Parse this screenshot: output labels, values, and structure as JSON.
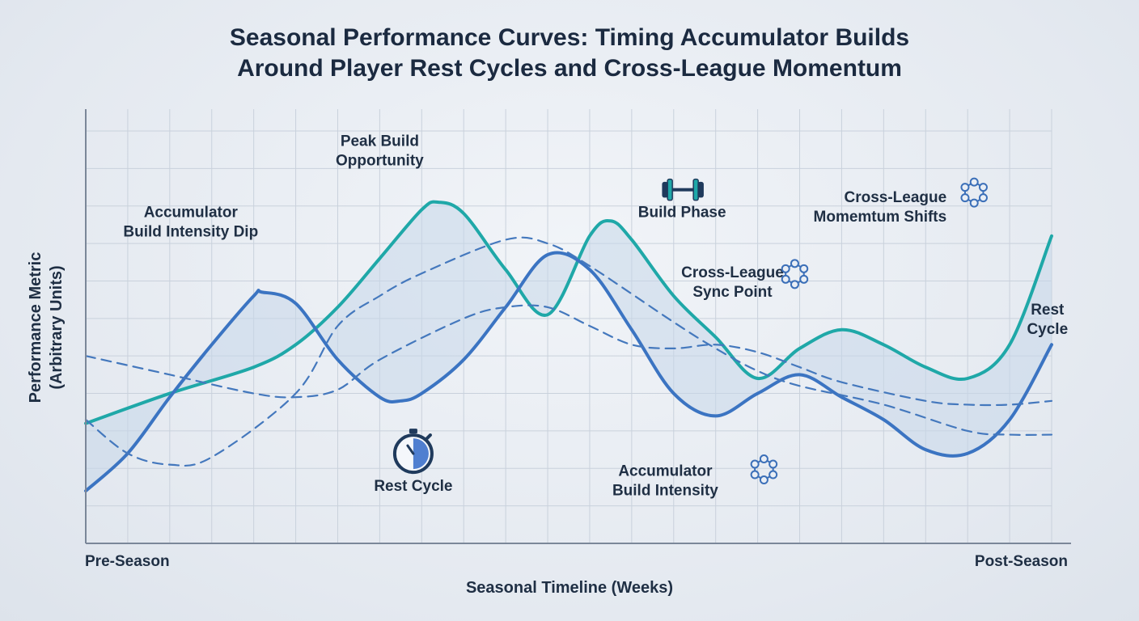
{
  "chart_data": {
    "type": "line",
    "title_line1": "Seasonal Performance Curves:  Timing Accumulator Builds",
    "title_line2": "Around Player Rest Cycles and Cross-League Momentum",
    "xlabel": "Seasonal Timeline (Weeks)",
    "ylabel_line1": "Performance Metric",
    "ylabel_line2": "(Arbitrary Units)",
    "x_tick_start": "Pre-Season",
    "x_tick_end": "Post-Season",
    "xlim": [
      0,
      23
    ],
    "ylim": [
      0,
      11
    ],
    "grid": true,
    "colors": {
      "teal": "#1fa8a8",
      "blue": "#3b74c2",
      "dash": "#4478bd",
      "grid": "#c9d1dc",
      "axis": "#7b8799"
    },
    "series": [
      {
        "style": "solid",
        "color": "#1fa8a8",
        "fill": "#bfe6e0",
        "points": [
          [
            0,
            3.2
          ],
          [
            2,
            4.0
          ],
          [
            4,
            4.7
          ],
          [
            5,
            5.3
          ],
          [
            6,
            6.3
          ],
          [
            7,
            7.6
          ],
          [
            8,
            8.9
          ],
          [
            8.4,
            9.1
          ],
          [
            9,
            8.8
          ],
          [
            10,
            7.3
          ],
          [
            11,
            6.1
          ],
          [
            12,
            8.2
          ],
          [
            12.5,
            8.6
          ],
          [
            13,
            8.1
          ],
          [
            14,
            6.6
          ],
          [
            15,
            5.5
          ],
          [
            16,
            4.4
          ],
          [
            17,
            5.2
          ],
          [
            18,
            5.7
          ],
          [
            19,
            5.3
          ],
          [
            20,
            4.7
          ],
          [
            21,
            4.4
          ],
          [
            22,
            5.3
          ],
          [
            23,
            8.2
          ]
        ]
      },
      {
        "style": "solid",
        "color": "#3b74c2",
        "fill": "#b9c8e6",
        "points": [
          [
            0,
            1.4
          ],
          [
            1,
            2.4
          ],
          [
            2,
            3.9
          ],
          [
            3,
            5.3
          ],
          [
            4,
            6.6
          ],
          [
            4.2,
            6.7
          ],
          [
            5,
            6.4
          ],
          [
            6,
            4.9
          ],
          [
            7,
            3.9
          ],
          [
            7.5,
            3.8
          ],
          [
            8,
            4.0
          ],
          [
            9,
            4.9
          ],
          [
            10,
            6.3
          ],
          [
            11,
            7.7
          ],
          [
            12,
            7.3
          ],
          [
            13,
            5.7
          ],
          [
            14,
            4.0
          ],
          [
            15,
            3.4
          ],
          [
            16,
            4.0
          ],
          [
            17,
            4.5
          ],
          [
            18,
            3.9
          ],
          [
            19,
            3.3
          ],
          [
            20,
            2.5
          ],
          [
            21,
            2.4
          ],
          [
            22,
            3.3
          ],
          [
            23,
            5.3
          ]
        ]
      },
      {
        "style": "dashed",
        "color": "#4478bd",
        "points": [
          [
            0,
            3.3
          ],
          [
            1,
            2.4
          ],
          [
            2,
            2.1
          ],
          [
            3,
            2.3
          ],
          [
            5,
            4.0
          ],
          [
            6,
            5.8
          ],
          [
            7,
            6.6
          ],
          [
            8,
            7.2
          ],
          [
            10,
            8.1
          ],
          [
            11,
            8.0
          ],
          [
            12,
            7.4
          ],
          [
            14,
            5.9
          ],
          [
            15,
            5.2
          ],
          [
            16,
            4.6
          ],
          [
            17,
            4.2
          ],
          [
            19,
            3.7
          ],
          [
            21,
            3.0
          ],
          [
            22,
            2.9
          ],
          [
            23,
            2.9
          ]
        ]
      },
      {
        "style": "dashed",
        "color": "#4478bd",
        "points": [
          [
            0,
            5.0
          ],
          [
            2,
            4.5
          ],
          [
            4,
            4.0
          ],
          [
            5,
            3.9
          ],
          [
            6,
            4.1
          ],
          [
            7,
            4.9
          ],
          [
            9,
            6.0
          ],
          [
            10,
            6.3
          ],
          [
            11,
            6.3
          ],
          [
            12,
            5.8
          ],
          [
            13,
            5.3
          ],
          [
            14,
            5.2
          ],
          [
            15,
            5.3
          ],
          [
            16,
            5.1
          ],
          [
            17,
            4.7
          ],
          [
            18,
            4.3
          ],
          [
            20,
            3.8
          ],
          [
            21,
            3.7
          ],
          [
            22,
            3.7
          ],
          [
            23,
            3.8
          ]
        ]
      }
    ],
    "annotations": [
      {
        "lines": [
          "Peak Build",
          "Opportunity"
        ],
        "x": 7.0,
        "y": 10.6,
        "anchor": "middle"
      },
      {
        "lines": [
          "Accumulator",
          "Build Intensity Dip"
        ],
        "x": 2.5,
        "y": 8.7,
        "anchor": "middle"
      },
      {
        "lines": [
          "Build Phase"
        ],
        "x": 14.2,
        "y": 8.7,
        "anchor": "middle",
        "icon": "dumbbell-icon"
      },
      {
        "lines": [
          "Cross-League",
          "Momemtum Shifts"
        ],
        "x": 20.5,
        "y": 9.1,
        "anchor": "end",
        "icon": "network-icon"
      },
      {
        "lines": [
          "Cross-League",
          "Sync Point"
        ],
        "x": 15.4,
        "y": 7.1,
        "anchor": "middle",
        "icon": "network-icon"
      },
      {
        "lines": [
          "Rest",
          "Cycle"
        ],
        "x": 22.9,
        "y": 6.1,
        "anchor": "middle"
      },
      {
        "lines": [
          "Rest Cycle"
        ],
        "x": 7.8,
        "y": 1.4,
        "anchor": "middle",
        "icon": "stopwatch-icon"
      },
      {
        "lines": [
          "Accumulator",
          "Build Intensity"
        ],
        "x": 13.8,
        "y": 1.8,
        "anchor": "middle",
        "icon": "network-icon"
      }
    ]
  }
}
